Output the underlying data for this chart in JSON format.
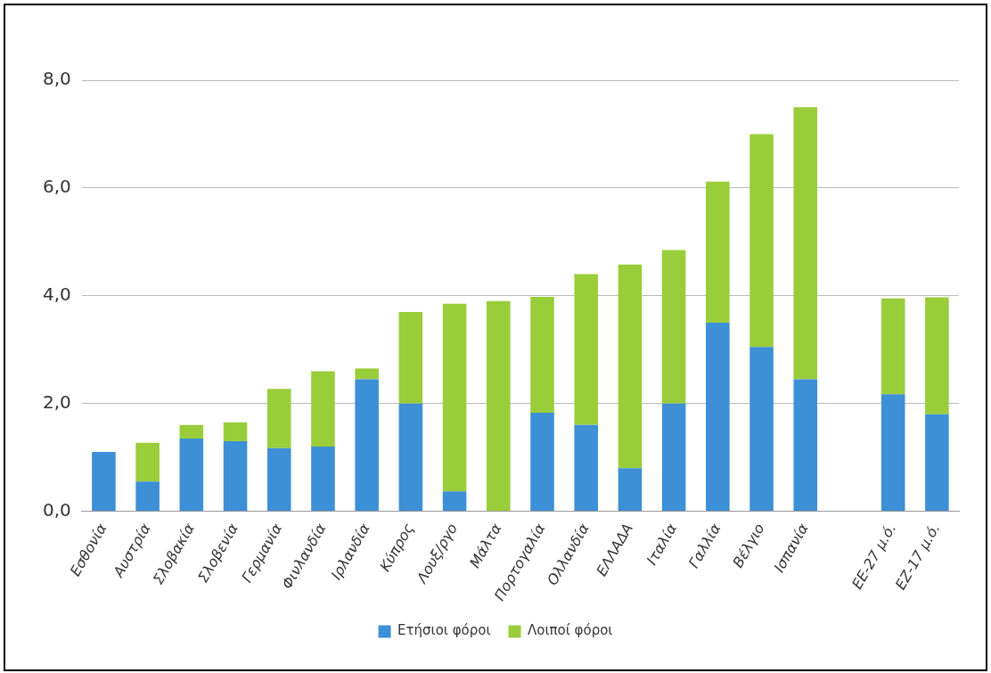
{
  "chart_data": {
    "type": "bar",
    "stacked": true,
    "categories": [
      "Εσθονία",
      "Αυστρία",
      "Σλοβακία",
      "Σλοβενία",
      "Γερμανία",
      "Φινλανδία",
      "Ιρλανδία",
      "Κύπρος",
      "Λουξ/ργο",
      "Μάλτα",
      "Πορτογαλία",
      "Ολλανδία",
      "ΕΛΛΑΔΑ",
      "Ιταλία",
      "Γαλλία",
      "Βέλγιο",
      "Ισπανία",
      null,
      "ΕΕ-27 μ.ό.",
      "ΕΖ-17 μ.ό."
    ],
    "series": [
      {
        "name": "Ετήσιοι φόροι",
        "color": "#3d8fd6",
        "values": [
          1.1,
          0.55,
          1.35,
          1.3,
          1.17,
          1.2,
          2.45,
          2.0,
          0.37,
          0,
          1.83,
          1.6,
          0.8,
          2.0,
          3.5,
          3.05,
          2.45,
          null,
          2.17,
          1.8
        ]
      },
      {
        "name": "Λοιποί φόροι",
        "color": "#9acd3a",
        "values": [
          0,
          0.72,
          0.25,
          0.35,
          1.1,
          1.4,
          0.2,
          1.7,
          3.48,
          3.9,
          2.15,
          2.8,
          3.78,
          2.85,
          2.62,
          3.95,
          5.05,
          null,
          1.78,
          2.17
        ]
      }
    ],
    "ylim": [
      0,
      8
    ],
    "yticks": [
      {
        "value": 0,
        "label": "0,0"
      },
      {
        "value": 2,
        "label": "2,0"
      },
      {
        "value": 4,
        "label": "4,0"
      },
      {
        "value": 6,
        "label": "6,0"
      },
      {
        "value": 8,
        "label": "8,0"
      }
    ],
    "grid": "y",
    "legend": "bottom"
  }
}
